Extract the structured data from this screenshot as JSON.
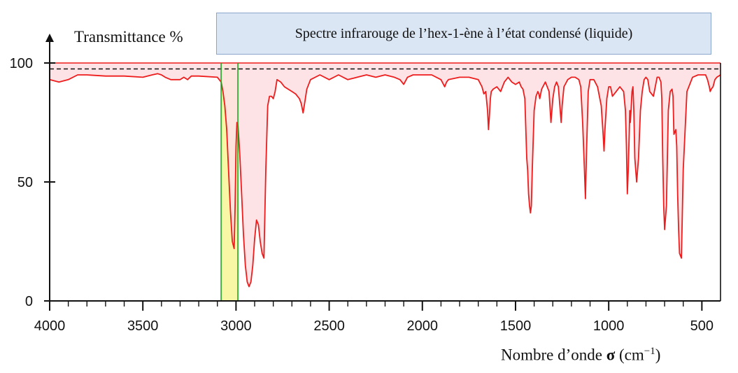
{
  "chart_data": {
    "type": "line",
    "title": "Spectre infrarouge de l’hex-1-ène à l’état condensé (liquide)",
    "ylabel": "Transmittance %",
    "xlabel_prefix": "Nombre d’onde ",
    "xlabel_symbol": "σ",
    "xlabel_unit_open": " (cm",
    "xlabel_unit_sup": "−1",
    "xlabel_unit_close": ")",
    "xlim": [
      4000,
      400
    ],
    "ylim": [
      0,
      100
    ],
    "x_ticks": [
      "4000",
      "3500",
      "3000",
      "2500",
      "2000",
      "1500",
      "1000",
      "500"
    ],
    "x_tick_values": [
      4000,
      3500,
      3000,
      2500,
      2000,
      1500,
      1000,
      500
    ],
    "y_ticks": [
      "0",
      "50",
      "100"
    ],
    "y_tick_values": [
      0,
      50,
      100
    ],
    "reference_line": 97.5,
    "highlight_band": [
      3080,
      2990
    ],
    "marker_lines": [
      3080,
      2990
    ],
    "colors": {
      "spectrum": "#ee1c1c",
      "fill": "#fde0e2",
      "band": "#f7f7a6",
      "markers": "#1fa81f",
      "title_box": "#dbe6f4"
    },
    "series": [
      {
        "x": [
          4000,
          3950,
          3900,
          3850,
          3800,
          3700,
          3600,
          3500,
          3450,
          3420,
          3400,
          3380,
          3350,
          3300,
          3280,
          3260,
          3240,
          3200,
          3100,
          3090,
          3080,
          3070,
          3060,
          3050,
          3040,
          3030,
          3020,
          3010,
          3005,
          3000,
          2995,
          2990,
          2980,
          2970,
          2960,
          2950,
          2940,
          2930,
          2920,
          2910,
          2900,
          2890,
          2880,
          2870,
          2860,
          2850,
          2840,
          2830,
          2820,
          2810,
          2800,
          2790,
          2780,
          2760,
          2740,
          2700,
          2680,
          2660,
          2650,
          2640,
          2630,
          2620,
          2600,
          2550,
          2500,
          2450,
          2400,
          2350,
          2300,
          2250,
          2200,
          2150,
          2120,
          2100,
          2080,
          2050,
          2000,
          1950,
          1900,
          1880,
          1870,
          1860,
          1800,
          1750,
          1700,
          1680,
          1670,
          1660,
          1650,
          1645,
          1640,
          1635,
          1630,
          1620,
          1600,
          1580,
          1560,
          1540,
          1520,
          1500,
          1480,
          1470,
          1460,
          1450,
          1440,
          1435,
          1430,
          1425,
          1420,
          1415,
          1410,
          1400,
          1390,
          1380,
          1375,
          1370,
          1360,
          1340,
          1320,
          1310,
          1300,
          1290,
          1280,
          1270,
          1260,
          1255,
          1250,
          1240,
          1220,
          1200,
          1180,
          1160,
          1150,
          1140,
          1130,
          1125,
          1120,
          1110,
          1100,
          1080,
          1060,
          1040,
          1030,
          1025,
          1020,
          1010,
          1000,
          990,
          980,
          960,
          940,
          920,
          910,
          905,
          900,
          895,
          890,
          887,
          884,
          880,
          875,
          870,
          865,
          860,
          850,
          840,
          830,
          820,
          810,
          800,
          790,
          780,
          760,
          740,
          730,
          720,
          715,
          710,
          705,
          700,
          690,
          680,
          670,
          660,
          655,
          650,
          640,
          635,
          630,
          625,
          620,
          610,
          600,
          580,
          550,
          520,
          500,
          480,
          470,
          460,
          455,
          450,
          440,
          430,
          420,
          410,
          400
        ],
        "y": [
          93,
          92,
          93,
          95,
          95,
          94.5,
          94.5,
          94,
          95,
          95.5,
          95,
          94,
          93,
          93,
          94,
          93,
          94.5,
          94.5,
          94,
          93,
          92,
          88,
          82,
          72,
          55,
          38,
          25,
          22,
          40,
          65,
          75,
          74,
          62,
          45,
          28,
          15,
          8,
          6,
          8,
          15,
          26,
          34,
          32,
          25,
          20,
          18,
          55,
          82,
          86,
          86,
          85,
          88,
          93,
          92,
          90,
          88,
          87,
          85,
          83,
          79,
          84,
          89,
          93,
          95,
          93,
          95,
          93,
          94,
          95,
          94,
          95,
          94,
          93,
          91,
          94,
          95,
          95,
          95,
          93,
          90,
          92,
          93,
          94,
          94,
          93,
          90,
          87,
          88,
          80,
          72,
          78,
          85,
          88,
          89,
          90,
          88,
          92,
          94,
          92,
          91,
          92,
          90,
          89,
          85,
          60,
          55,
          45,
          40,
          37,
          40,
          55,
          80,
          86,
          88,
          87,
          85,
          89,
          92,
          88,
          75,
          85,
          90,
          92,
          90,
          80,
          75,
          82,
          90,
          93,
          94,
          94,
          93,
          90,
          75,
          55,
          43,
          60,
          88,
          93,
          93,
          90,
          82,
          70,
          63,
          72,
          85,
          90,
          90,
          86,
          88,
          90,
          88,
          80,
          65,
          45,
          55,
          70,
          80,
          75,
          80,
          88,
          90,
          80,
          60,
          50,
          60,
          80,
          88,
          93,
          94,
          93,
          88,
          86,
          94,
          94,
          92,
          85,
          60,
          40,
          30,
          40,
          80,
          88,
          89,
          86,
          70,
          72,
          65,
          45,
          30,
          20,
          18,
          55,
          88,
          94,
          95,
          95,
          95,
          93,
          90,
          88,
          89,
          90,
          93,
          94,
          94.5,
          95
        ]
      }
    ]
  }
}
